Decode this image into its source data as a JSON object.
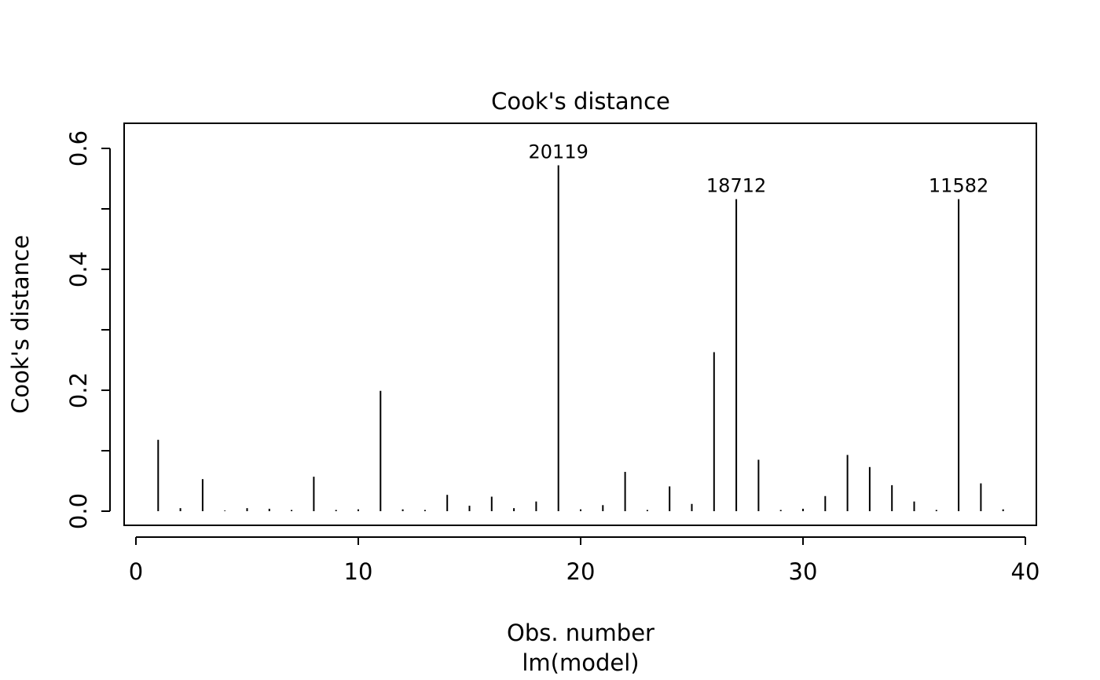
{
  "chart_data": {
    "type": "bar",
    "title": "Cook's distance",
    "xlabel": "Obs. number",
    "subtitle": "lm(model)",
    "ylabel": "Cook's distance",
    "xlim": [
      0,
      40
    ],
    "ylim": [
      0,
      0.6
    ],
    "x_ticks": [
      0,
      10,
      20,
      30,
      40
    ],
    "x_tick_labels": [
      "0",
      "10",
      "20",
      "30",
      "40"
    ],
    "y_ticks": [
      0,
      0.1,
      0.2,
      0.3,
      0.4,
      0.5,
      0.6
    ],
    "y_tick_labels": [
      "0.0",
      "",
      "0.2",
      "",
      "0.4",
      "",
      "0.6"
    ],
    "grid": false,
    "x": [
      1,
      2,
      3,
      4,
      5,
      6,
      7,
      8,
      9,
      10,
      11,
      12,
      13,
      14,
      15,
      16,
      17,
      18,
      19,
      20,
      21,
      22,
      23,
      24,
      25,
      26,
      27,
      28,
      29,
      30,
      31,
      32,
      33,
      34,
      35,
      36,
      37,
      38,
      39
    ],
    "values": [
      0.118,
      0.005,
      0.053,
      0.001,
      0.005,
      0.004,
      0.002,
      0.057,
      0.002,
      0.003,
      0.199,
      0.003,
      0.002,
      0.027,
      0.009,
      0.024,
      0.005,
      0.016,
      0.572,
      0.003,
      0.01,
      0.065,
      0.002,
      0.041,
      0.012,
      0.263,
      0.516,
      0.085,
      0.002,
      0.004,
      0.025,
      0.093,
      0.073,
      0.043,
      0.016,
      0.002,
      0.516,
      0.046,
      0.003
    ],
    "annotations": [
      {
        "x": 19,
        "text": "20119"
      },
      {
        "x": 27,
        "text": "18712"
      },
      {
        "x": 37,
        "text": "11582"
      }
    ]
  }
}
